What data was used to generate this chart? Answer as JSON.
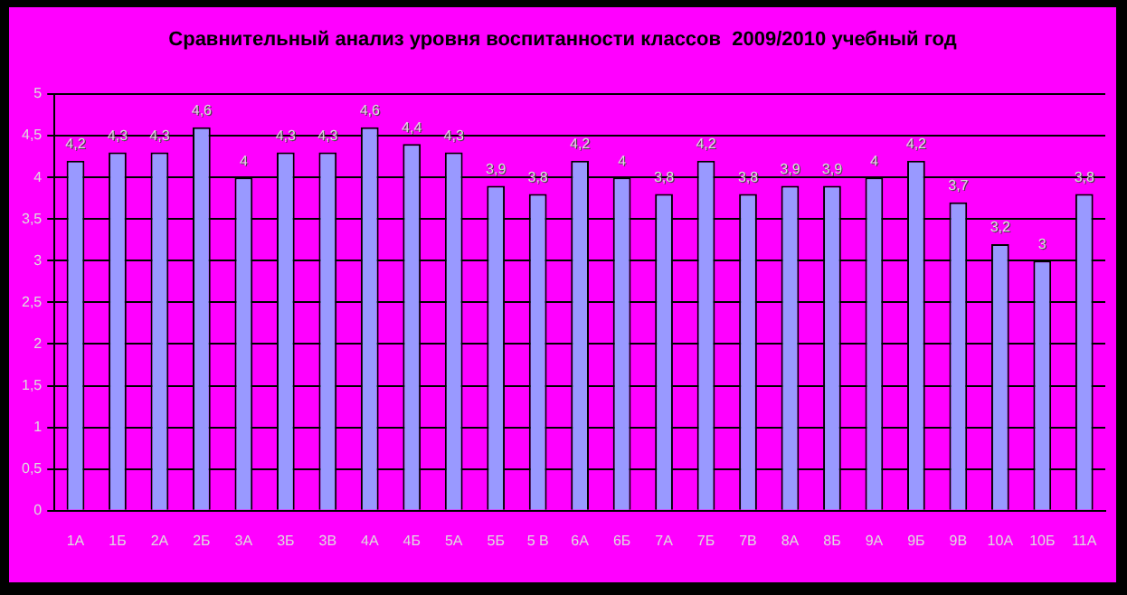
{
  "chart_data": {
    "type": "bar",
    "title": "Сравнительный анализ уровня воспитанности классов  2009/2010 учебный год",
    "categories": [
      "1А",
      "1Б",
      "2А",
      "2Б",
      "3А",
      "3Б",
      "3В",
      "4А",
      "4Б",
      "5А",
      "5Б",
      "5 В",
      "6А",
      "6Б",
      "7А",
      "7Б",
      "7В",
      "8А",
      "8Б",
      "9А",
      "9Б",
      "9В",
      "10А",
      "10Б",
      "11А"
    ],
    "values": [
      4.2,
      4.3,
      4.3,
      4.6,
      4,
      4.3,
      4.3,
      4.6,
      4.4,
      4.3,
      3.9,
      3.8,
      4.2,
      4,
      3.8,
      4.2,
      3.8,
      3.9,
      3.9,
      4,
      4.2,
      3.7,
      3.2,
      3,
      3.8
    ],
    "value_labels": [
      "4,2",
      "4,3",
      "4,3",
      "4,6",
      "4",
      "4,3",
      "4,3",
      "4,6",
      "4,4",
      "4,3",
      "3,9",
      "3,8",
      "4,2",
      "4",
      "3,8",
      "4,2",
      "3,8",
      "3,9",
      "3,9",
      "4",
      "4,2",
      "3,7",
      "3,2",
      "3",
      "3,8"
    ],
    "color": "#9999ff",
    "ylim": [
      0,
      5
    ],
    "yticks": [
      0,
      {
        "value": 0.5,
        "label": "0,5"
      },
      1,
      {
        "value": 1.5,
        "label": "1,5"
      },
      2,
      {
        "value": 2.5,
        "label": "2,5"
      },
      3,
      {
        "value": 3.5,
        "label": "3,5"
      },
      4,
      {
        "value": 4.5,
        "label": "4,5"
      },
      5
    ],
    "grid": "y",
    "legend": false
  }
}
